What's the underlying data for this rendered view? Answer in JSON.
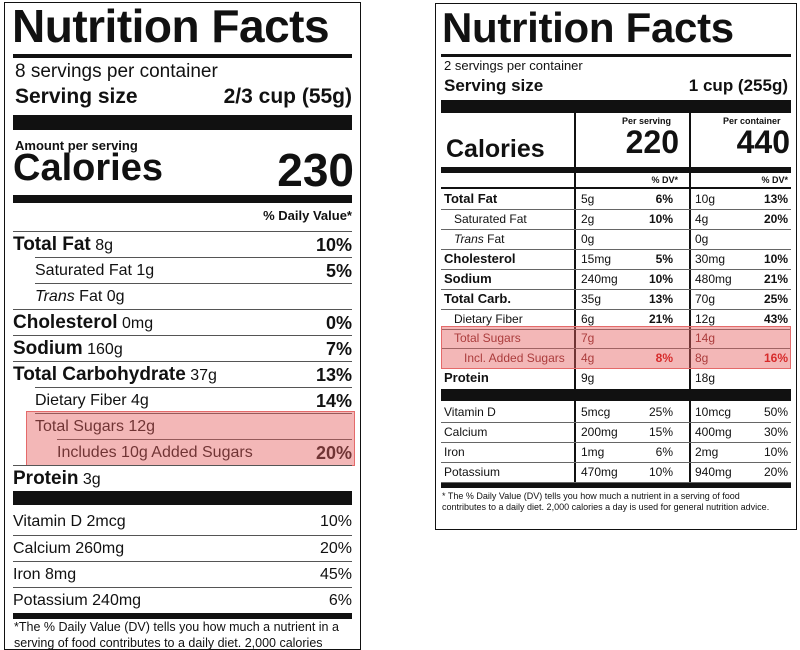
{
  "left": {
    "title": "Nutrition Facts",
    "servings": "8 servings per container",
    "serving_size_label": "Serving size",
    "serving_size_value": "2/3 cup (55g)",
    "amount_per_serving": "Amount per serving",
    "calories_label": "Calories",
    "calories_value": "230",
    "daily_value_header": "% Daily Value*",
    "rows": {
      "total_fat": {
        "name": "Total Fat",
        "amount": "8g",
        "dv": "10%"
      },
      "saturated_fat": {
        "name": "Saturated Fat 1g",
        "dv": "5%"
      },
      "trans_fat": {
        "prefix": "Trans",
        "suffix": "Fat 0g"
      },
      "cholesterol": {
        "name": "Cholesterol",
        "amount": "0mg",
        "dv": "0%"
      },
      "sodium": {
        "name": "Sodium",
        "amount": "160g",
        "dv": "7%"
      },
      "total_carb": {
        "name": "Total Carbohydrate",
        "amount": "37g",
        "dv": "13%"
      },
      "dietary_fiber": {
        "name": "Dietary Fiber 4g",
        "dv": "14%"
      },
      "total_sugars": {
        "name": "Total Sugars 12g"
      },
      "added_sugars": {
        "name": "Includes 10g Added Sugars",
        "dv": "20%"
      },
      "protein": {
        "name": "Protein",
        "amount": "3g"
      },
      "vitamin_d": {
        "name": "Vitamin D 2mcg",
        "dv": "10%"
      },
      "calcium": {
        "name": "Calcium 260mg",
        "dv": "20%"
      },
      "iron": {
        "name": "Iron 8mg",
        "dv": "45%"
      },
      "potassium": {
        "name": "Potassium 240mg",
        "dv": "6%"
      }
    },
    "footnote": "*The % Daily Value (DV) tells you how much a nutrient in a serving of food contributes to a daily diet. 2,000 calories"
  },
  "right": {
    "title": "Nutrition Facts",
    "servings": "2 servings per container",
    "serving_size_label": "Serving size",
    "serving_size_value": "1 cup (255g)",
    "per_serving": "Per serving",
    "per_container": "Per container",
    "calories_label": "Calories",
    "calories_serving": "220",
    "calories_container": "440",
    "dv_header": "% DV*",
    "rows": [
      {
        "name": "Total Fat",
        "a1": "5g",
        "d1": "6%",
        "a2": "10g",
        "d2": "13%"
      },
      {
        "name": "Saturated Fat",
        "a1": "2g",
        "d1": "10%",
        "a2": "4g",
        "d2": "20%"
      },
      {
        "name_italic": "Trans",
        "name_rest": " Fat",
        "a1": "0g",
        "d1": "",
        "a2": "0g",
        "d2": ""
      },
      {
        "name": "Cholesterol",
        "a1": "15mg",
        "d1": "5%",
        "a2": "30mg",
        "d2": "10%"
      },
      {
        "name": "Sodium",
        "a1": "240mg",
        "d1": "10%",
        "a2": "480mg",
        "d2": "21%"
      },
      {
        "name": "Total Carb.",
        "a1": "35g",
        "d1": "13%",
        "a2": "70g",
        "d2": "25%"
      },
      {
        "name": "Dietary Fiber",
        "a1": "6g",
        "d1": "21%",
        "a2": "12g",
        "d2": "43%"
      },
      {
        "name": "Total Sugars",
        "a1": "7g",
        "d1": "",
        "a2": "14g",
        "d2": ""
      },
      {
        "name": "Incl. Added Sugars",
        "a1": "4g",
        "d1": "8%",
        "a2": "8g",
        "d2": "16%"
      },
      {
        "name": "Protein",
        "a1": "9g",
        "d1": "",
        "a2": "18g",
        "d2": ""
      },
      {
        "name": "Vitamin D",
        "a1": "5mcg",
        "d1": "25%",
        "a2": "10mcg",
        "d2": "50%"
      },
      {
        "name": "Calcium",
        "a1": "200mg",
        "d1": "15%",
        "a2": "400mg",
        "d2": "30%"
      },
      {
        "name": "Iron",
        "a1": "1mg",
        "d1": "6%",
        "a2": "2mg",
        "d2": "10%"
      },
      {
        "name": "Potassium",
        "a1": "470mg",
        "d1": "10%",
        "a2": "940mg",
        "d2": "20%"
      }
    ],
    "footnote": "* The % Daily Value (DV) tells you how much a nutrient in a serving of food contributes to a daily diet. 2,000 calories a day is used for general nutrition advice."
  },
  "colors": {
    "highlight": "#e46a6a",
    "ink": "#111111"
  }
}
